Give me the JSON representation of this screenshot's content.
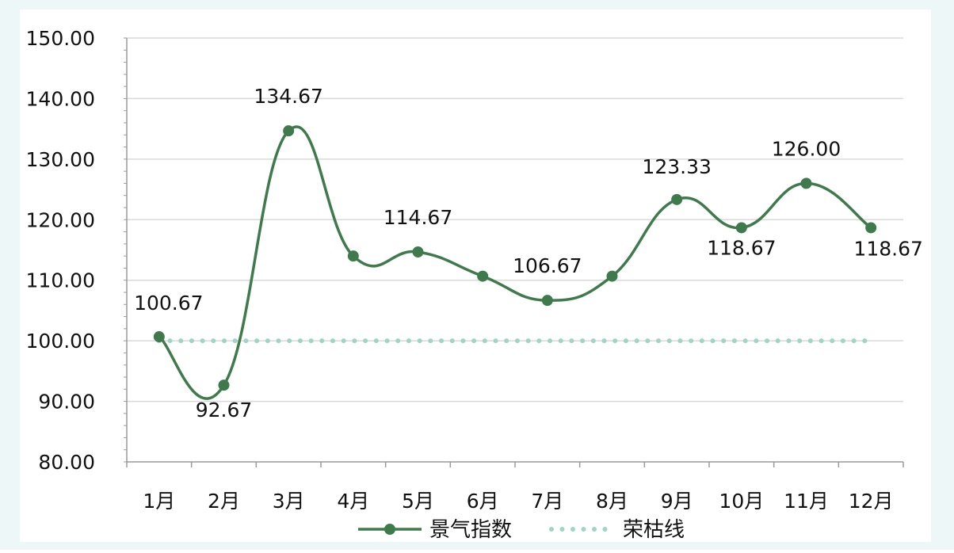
{
  "chart_data": {
    "type": "line",
    "title": "",
    "xlabel": "",
    "ylabel": "",
    "categories": [
      "1月",
      "2月",
      "3月",
      "4月",
      "5月",
      "6月",
      "7月",
      "8月",
      "9月",
      "10月",
      "11月",
      "12月"
    ],
    "ylim": [
      80,
      150
    ],
    "yticks": [
      "80.00",
      "90.00",
      "100.00",
      "110.00",
      "120.00",
      "130.00",
      "140.00",
      "150.00"
    ],
    "grid": true,
    "legend_position": "bottom",
    "series": [
      {
        "name": "景气指数",
        "style": "smooth-line-with-markers",
        "color": "#3e7a4c",
        "values": [
          100.67,
          92.67,
          134.67,
          114.0,
          114.67,
          110.67,
          106.67,
          110.67,
          123.33,
          118.67,
          126.0,
          118.67
        ],
        "data_labels": [
          "100.67",
          "92.67",
          "134.67",
          null,
          "114.67",
          null,
          "106.67",
          null,
          "123.33",
          "118.67",
          "126.00",
          "118.67"
        ]
      },
      {
        "name": "荣枯线",
        "style": "dotted-line",
        "color": "#9fd4c6",
        "values": [
          100,
          100,
          100,
          100,
          100,
          100,
          100,
          100,
          100,
          100,
          100,
          100
        ]
      }
    ]
  },
  "colors": {
    "background": "#ffffff",
    "outer_background": "#eef7f7",
    "grid": "#d9d9d9",
    "axis": "#9a9a9a"
  }
}
